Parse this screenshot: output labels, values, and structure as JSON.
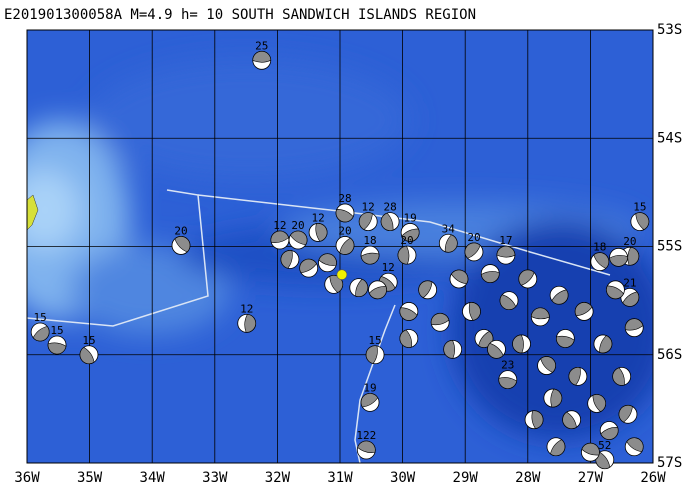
{
  "map": {
    "title": "E201901300058A M=4.9 h= 10 SOUTH SANDWICH ISLANDS REGION",
    "xlim": [
      -36,
      -26
    ],
    "ylim": [
      -57,
      -53
    ],
    "xticks": [
      {
        "value": -36,
        "label": "36W"
      },
      {
        "value": -35,
        "label": "35W"
      },
      {
        "value": -34,
        "label": "34W"
      },
      {
        "value": -33,
        "label": "33W"
      },
      {
        "value": -32,
        "label": "32W"
      },
      {
        "value": -31,
        "label": "31W"
      },
      {
        "value": -30,
        "label": "30W"
      },
      {
        "value": -29,
        "label": "29W"
      },
      {
        "value": -28,
        "label": "28W"
      },
      {
        "value": -27,
        "label": "27W"
      },
      {
        "value": -26,
        "label": "26W"
      }
    ],
    "yticks": [
      {
        "value": -53,
        "label": "53S"
      },
      {
        "value": -54,
        "label": "54S"
      },
      {
        "value": -55,
        "label": "55S"
      },
      {
        "value": -56,
        "label": "56S"
      },
      {
        "value": -57,
        "label": "57S"
      }
    ],
    "grid": true,
    "epicenter": {
      "lon": -30.97,
      "lat": -55.26,
      "color": "#f2f200"
    },
    "events": [
      {
        "lon": -32.25,
        "lat": -53.28,
        "depth": 25
      },
      {
        "lon": -33.54,
        "lat": -54.99,
        "depth": 20
      },
      {
        "lon": -32.49,
        "lat": -55.71,
        "depth": 12
      },
      {
        "lon": -35.79,
        "lat": -55.79,
        "depth": 15
      },
      {
        "lon": -35.52,
        "lat": -55.91,
        "depth": 15
      },
      {
        "lon": -35.01,
        "lat": -56.0,
        "depth": 15
      },
      {
        "lon": -30.44,
        "lat": -56.0,
        "depth": 15
      },
      {
        "lon": -30.52,
        "lat": -56.44,
        "depth": 19
      },
      {
        "lon": -30.58,
        "lat": -56.88,
        "depth": 122
      },
      {
        "lon": -26.21,
        "lat": -54.77,
        "depth": 15
      },
      {
        "lon": -29.27,
        "lat": -54.97,
        "depth": 34
      },
      {
        "lon": -29.88,
        "lat": -54.87,
        "depth": 19
      },
      {
        "lon": -30.92,
        "lat": -54.69,
        "depth": 28
      },
      {
        "lon": -30.2,
        "lat": -54.77,
        "depth": 28
      },
      {
        "lon": -30.55,
        "lat": -54.77,
        "depth": 12
      },
      {
        "lon": -31.96,
        "lat": -54.94,
        "depth": 12
      },
      {
        "lon": -31.67,
        "lat": -54.94,
        "depth": 20
      },
      {
        "lon": -31.35,
        "lat": -54.87,
        "depth": 12
      },
      {
        "lon": -30.92,
        "lat": -54.99,
        "depth": 20
      },
      {
        "lon": -30.52,
        "lat": -55.08,
        "depth": 18
      },
      {
        "lon": -30.23,
        "lat": -55.33,
        "depth": 12
      },
      {
        "lon": -29.93,
        "lat": -55.08,
        "depth": 20
      },
      {
        "lon": -28.86,
        "lat": -55.05,
        "depth": 20
      },
      {
        "lon": -28.35,
        "lat": -55.08,
        "depth": 17
      },
      {
        "lon": -26.85,
        "lat": -55.14,
        "depth": 18
      },
      {
        "lon": -26.37,
        "lat": -55.09,
        "depth": 20
      },
      {
        "lon": -26.37,
        "lat": -55.47,
        "depth": 21
      },
      {
        "lon": -28.32,
        "lat": -56.23,
        "depth": 23
      },
      {
        "lon": -26.77,
        "lat": -56.97,
        "depth": 52
      },
      {
        "lon": -31.8,
        "lat": -55.12,
        "depth": null
      },
      {
        "lon": -31.5,
        "lat": -55.2,
        "depth": null
      },
      {
        "lon": -31.2,
        "lat": -55.15,
        "depth": null
      },
      {
        "lon": -31.1,
        "lat": -55.35,
        "depth": null
      },
      {
        "lon": -30.7,
        "lat": -55.38,
        "depth": null
      },
      {
        "lon": -30.4,
        "lat": -55.4,
        "depth": null
      },
      {
        "lon": -29.9,
        "lat": -55.6,
        "depth": null
      },
      {
        "lon": -29.9,
        "lat": -55.85,
        "depth": null
      },
      {
        "lon": -29.6,
        "lat": -55.4,
        "depth": null
      },
      {
        "lon": -29.4,
        "lat": -55.7,
        "depth": null
      },
      {
        "lon": -29.1,
        "lat": -55.3,
        "depth": null
      },
      {
        "lon": -28.9,
        "lat": -55.6,
        "depth": null
      },
      {
        "lon": -28.7,
        "lat": -55.85,
        "depth": null
      },
      {
        "lon": -28.6,
        "lat": -55.25,
        "depth": null
      },
      {
        "lon": -28.3,
        "lat": -55.5,
        "depth": null
      },
      {
        "lon": -28.1,
        "lat": -55.9,
        "depth": null
      },
      {
        "lon": -28.0,
        "lat": -55.3,
        "depth": null
      },
      {
        "lon": -27.8,
        "lat": -55.65,
        "depth": null
      },
      {
        "lon": -27.7,
        "lat": -56.1,
        "depth": null
      },
      {
        "lon": -27.6,
        "lat": -56.4,
        "depth": null
      },
      {
        "lon": -27.5,
        "lat": -55.45,
        "depth": null
      },
      {
        "lon": -27.4,
        "lat": -55.85,
        "depth": null
      },
      {
        "lon": -27.3,
        "lat": -56.6,
        "depth": null
      },
      {
        "lon": -27.2,
        "lat": -56.2,
        "depth": null
      },
      {
        "lon": -27.1,
        "lat": -55.6,
        "depth": null
      },
      {
        "lon": -27.0,
        "lat": -56.9,
        "depth": null
      },
      {
        "lon": -26.9,
        "lat": -56.45,
        "depth": null
      },
      {
        "lon": -26.8,
        "lat": -55.9,
        "depth": null
      },
      {
        "lon": -26.7,
        "lat": -56.7,
        "depth": null
      },
      {
        "lon": -26.6,
        "lat": -55.4,
        "depth": null
      },
      {
        "lon": -26.5,
        "lat": -56.2,
        "depth": null
      },
      {
        "lon": -26.4,
        "lat": -56.55,
        "depth": null
      },
      {
        "lon": -26.3,
        "lat": -55.75,
        "depth": null
      },
      {
        "lon": -26.3,
        "lat": -56.85,
        "depth": null
      },
      {
        "lon": -27.9,
        "lat": -56.6,
        "depth": null
      },
      {
        "lon": -27.55,
        "lat": -56.85,
        "depth": null
      },
      {
        "lon": -26.55,
        "lat": -55.1,
        "depth": null
      },
      {
        "lon": -28.5,
        "lat": -55.95,
        "depth": null
      },
      {
        "lon": -29.2,
        "lat": -55.95,
        "depth": null
      }
    ]
  }
}
